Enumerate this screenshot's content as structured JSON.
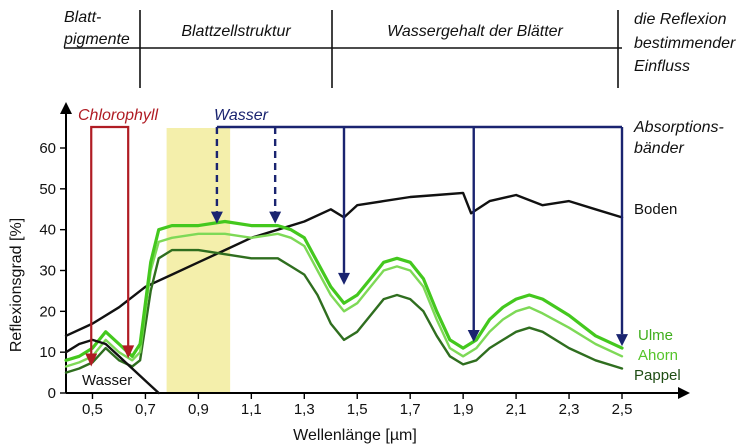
{
  "header": {
    "segments": [
      {
        "label_lines": [
          "Blatt-",
          "pigmente"
        ]
      },
      {
        "label_lines": [
          "Blattzellstruktur"
        ]
      },
      {
        "label_lines": [
          "Wassergehalt der Blätter"
        ]
      },
      {
        "label_lines": [
          "die Reflexion",
          "bestimmender",
          "Einfluss"
        ]
      }
    ],
    "boundaries_um": [
      0.7,
      1.3,
      2.5
    ]
  },
  "chart_data": {
    "type": "line",
    "xlabel": "Wellenlänge [µm]",
    "ylabel": "Reflexionsgrad [%]",
    "xlim": [
      0.4,
      2.5
    ],
    "ylim": [
      0,
      65
    ],
    "x_ticks": [
      0.5,
      0.7,
      0.9,
      1.1,
      1.3,
      1.5,
      1.7,
      1.9,
      2.1,
      2.3,
      2.5
    ],
    "x_tick_labels": [
      "0,5",
      "0,7",
      "0,9",
      "1,1",
      "1,3",
      "1,5",
      "1,7",
      "1,9",
      "2,1",
      "2,3",
      "2,5"
    ],
    "y_ticks": [
      0,
      10,
      20,
      30,
      40,
      50,
      60
    ],
    "y_tick_labels": [
      "0",
      "10",
      "20",
      "30",
      "40",
      "50",
      "60"
    ],
    "series": [
      {
        "name": "Boden",
        "color": "#111111",
        "x": [
          0.4,
          0.5,
          0.6,
          0.7,
          0.8,
          0.9,
          1.0,
          1.1,
          1.2,
          1.3,
          1.4,
          1.45,
          1.5,
          1.6,
          1.7,
          1.8,
          1.9,
          1.93,
          2.0,
          2.1,
          2.2,
          2.3,
          2.4,
          2.5
        ],
        "y": [
          14,
          17,
          21,
          26,
          29,
          32,
          35,
          38,
          40,
          42,
          45,
          43,
          46,
          47,
          48,
          48.5,
          49,
          44,
          47,
          48.5,
          46,
          47,
          45,
          43
        ]
      },
      {
        "name": "Ulme",
        "color": "#44c81e",
        "x": [
          0.4,
          0.45,
          0.5,
          0.55,
          0.6,
          0.65,
          0.68,
          0.72,
          0.75,
          0.8,
          0.9,
          1.0,
          1.1,
          1.2,
          1.25,
          1.3,
          1.35,
          1.4,
          1.45,
          1.5,
          1.55,
          1.6,
          1.65,
          1.7,
          1.75,
          1.8,
          1.85,
          1.9,
          1.95,
          2.0,
          2.05,
          2.1,
          2.15,
          2.2,
          2.3,
          2.4,
          2.5
        ],
        "y": [
          8,
          9,
          11,
          15,
          12,
          9,
          12,
          32,
          40,
          41,
          41,
          42,
          41,
          41,
          40,
          38,
          32,
          26,
          22,
          24,
          28,
          32,
          33,
          32,
          28,
          20,
          13,
          11,
          13,
          18,
          21,
          23,
          24,
          23,
          19,
          14,
          11
        ]
      },
      {
        "name": "Ahorn",
        "color": "#7ed957",
        "x": [
          0.4,
          0.45,
          0.5,
          0.55,
          0.6,
          0.65,
          0.68,
          0.72,
          0.75,
          0.8,
          0.9,
          1.0,
          1.1,
          1.2,
          1.25,
          1.3,
          1.35,
          1.4,
          1.45,
          1.5,
          1.55,
          1.6,
          1.65,
          1.7,
          1.75,
          1.8,
          1.85,
          1.9,
          1.95,
          2.0,
          2.05,
          2.1,
          2.15,
          2.2,
          2.3,
          2.4,
          2.5
        ],
        "y": [
          6.5,
          7.5,
          9,
          13,
          10,
          8,
          10,
          30,
          37,
          38,
          39,
          39,
          38,
          39,
          38,
          36,
          30,
          24,
          20,
          22,
          26,
          30,
          31,
          30,
          26,
          18,
          11,
          9,
          11,
          15,
          18,
          20,
          21,
          19.5,
          16,
          12,
          9
        ]
      },
      {
        "name": "Pappel",
        "color": "#2f6e1f",
        "x": [
          0.4,
          0.45,
          0.5,
          0.55,
          0.6,
          0.65,
          0.68,
          0.72,
          0.75,
          0.8,
          0.9,
          1.0,
          1.1,
          1.2,
          1.25,
          1.3,
          1.35,
          1.4,
          1.45,
          1.5,
          1.55,
          1.6,
          1.65,
          1.7,
          1.75,
          1.8,
          1.85,
          1.9,
          1.95,
          2.0,
          2.05,
          2.1,
          2.15,
          2.2,
          2.3,
          2.4,
          2.5
        ],
        "y": [
          5,
          6,
          7.5,
          11,
          8,
          6.5,
          8,
          25,
          33,
          35,
          35,
          34,
          33,
          33,
          31,
          29,
          24,
          17,
          13,
          15,
          19,
          23,
          24,
          23,
          20,
          14,
          9,
          7,
          8,
          11,
          13,
          15,
          16,
          15,
          11,
          8,
          6
        ]
      },
      {
        "name": "Wasser",
        "color": "#111111",
        "x": [
          0.4,
          0.45,
          0.5,
          0.55,
          0.6,
          0.65,
          0.7,
          0.75
        ],
        "y": [
          10,
          12,
          13,
          12,
          9,
          6,
          3,
          0
        ]
      }
    ],
    "highlight_band_um": [
      0.78,
      1.02
    ],
    "absorption_bands": {
      "chlorophyll_um": [
        0.45,
        0.65
      ],
      "wasser_um": [
        0.97,
        1.19,
        1.45,
        1.94,
        2.5
      ],
      "wasser_dashed_um": [
        0.97,
        1.19
      ]
    },
    "annotations": {
      "chlorophyll": "Chlorophyll",
      "wasser_top": "Wasser",
      "wasser_curve": "Wasser",
      "absorption_lines": [
        "Absorptions-",
        "bänder"
      ],
      "boden": "Boden",
      "ulme": "Ulme",
      "ahorn": "Ahorn",
      "pappel": "Pappel"
    },
    "colors": {
      "chlorophyll": "#b01c24",
      "wasser": "#1a2470",
      "band": "#f2ec9c",
      "axis": "#000000"
    }
  }
}
